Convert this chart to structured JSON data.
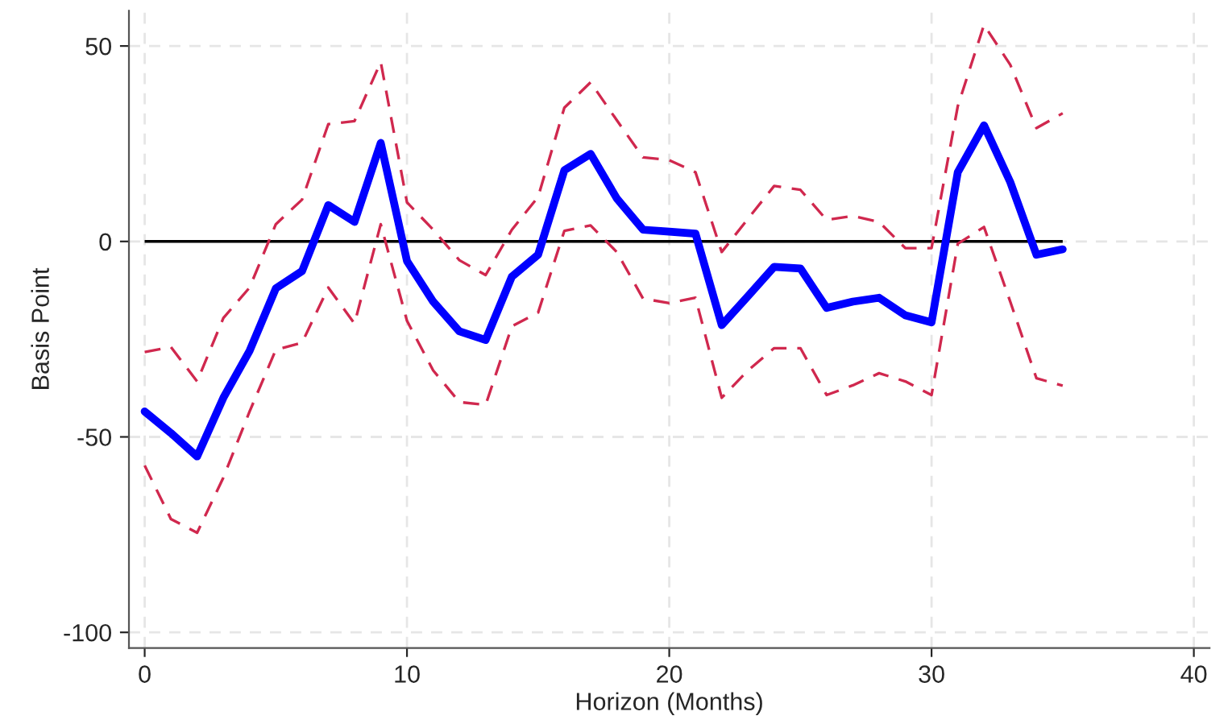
{
  "chart_data": {
    "type": "line",
    "xlabel": "Horizon (Months)",
    "ylabel": "Basis Point",
    "x": [
      0,
      1,
      2,
      3,
      4,
      5,
      6,
      7,
      8,
      9,
      10,
      11,
      12,
      13,
      14,
      15,
      16,
      17,
      18,
      19,
      20,
      21,
      22,
      23,
      24,
      25,
      26,
      27,
      28,
      29,
      30,
      31,
      32,
      33,
      34,
      35
    ],
    "series": [
      {
        "color": "#0000ff",
        "line_style": "solid",
        "values": [
          -43.5,
          -49,
          -55,
          -40,
          -28,
          -12,
          -7.6,
          9.3,
          5,
          25.2,
          -5,
          -15.4,
          -23,
          -25.2,
          -9,
          -3.4,
          18.2,
          22.4,
          11,
          3,
          2.5,
          2,
          -21.4,
          -14,
          -6.5,
          -6.9,
          -17,
          -15.4,
          -14.4,
          -18.9,
          -20.7,
          17.7,
          29.7,
          15.2,
          -3.4,
          -2
        ]
      },
      {
        "color": "#d0284e",
        "line_style": "dashed",
        "values": [
          -28.3,
          -27,
          -35.8,
          -19.6,
          -11.8,
          4.4,
          10.7,
          30,
          30.8,
          45.9,
          10,
          3,
          -4.8,
          -8.6,
          3,
          11.4,
          34.2,
          40.7,
          31,
          21.5,
          20.8,
          17.7,
          -2.7,
          5.8,
          14.2,
          13.2,
          5.5,
          6.5,
          5,
          -1.7,
          -1.7,
          34.6,
          55.4,
          45.2,
          29,
          32.8
        ]
      },
      {
        "color": "#d0284e",
        "line_style": "dashed",
        "values": [
          -57.3,
          -71,
          -74.5,
          -60.4,
          -43.5,
          -27.7,
          -25.9,
          -11.8,
          -21,
          4.4,
          -20.3,
          -33,
          -41.1,
          -41.8,
          -21.7,
          -18.2,
          2.7,
          4.1,
          -2.7,
          -14.6,
          -15.8,
          -14.4,
          -40,
          -33,
          -27.3,
          -27.3,
          -39.3,
          -36.8,
          -33.7,
          -35.8,
          -39.3,
          -0.6,
          3.7,
          -15.4,
          -35,
          -36.9
        ]
      }
    ],
    "ref_lines": [
      {
        "axis": "y",
        "value": 0,
        "color": "#000000"
      }
    ],
    "xlim": [
      -0.6,
      40.6
    ],
    "ylim": [
      -104,
      59
    ],
    "xticks": [
      0,
      10,
      20,
      30,
      40
    ],
    "yticks": [
      -100,
      -50,
      0,
      50
    ],
    "grid": true,
    "legend": false
  }
}
